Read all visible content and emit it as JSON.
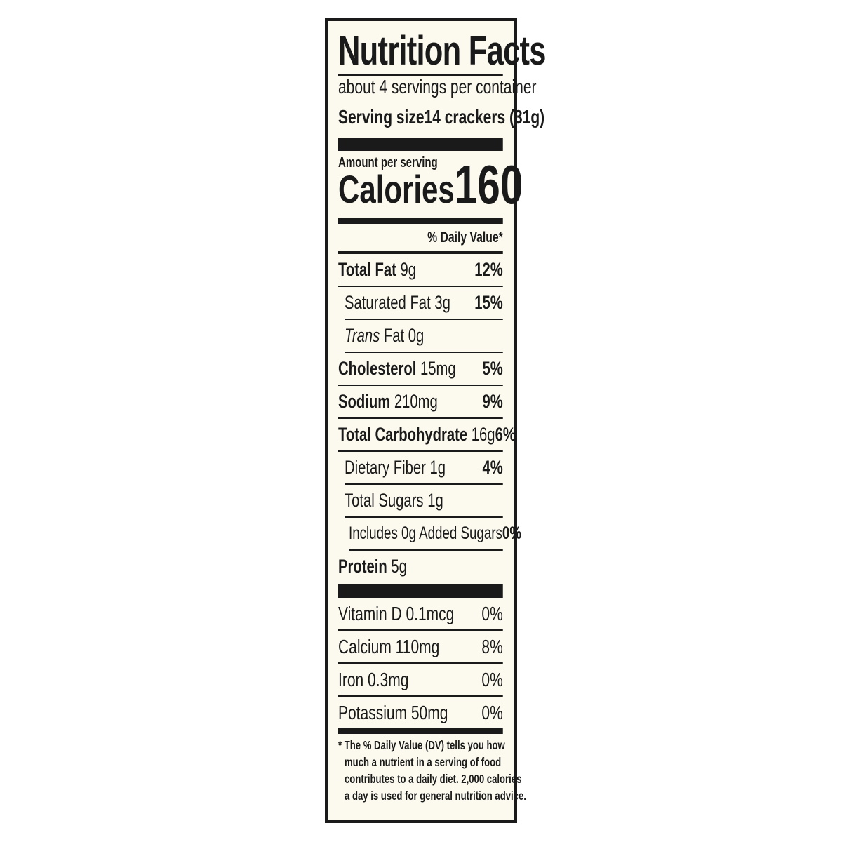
{
  "label": {
    "title": "Nutrition Facts",
    "servings_per_container": "about 4 servings per container",
    "serving_size_label": "Serving size",
    "serving_size_value": "14 crackers (31g)",
    "amount_per_serving": "Amount per serving",
    "calories_label": "Calories",
    "calories_value": "160",
    "daily_value_header": "% Daily Value*",
    "nutrients": [
      {
        "name": "Total Fat",
        "amount": "9g",
        "dv": "12%"
      },
      {
        "name": "Saturated Fat",
        "amount": "3g",
        "dv": "15%"
      },
      {
        "name": "Trans",
        "name_suffix": "Fat",
        "amount": "0g",
        "dv": ""
      },
      {
        "name": "Cholesterol",
        "amount": "15mg",
        "dv": "5%"
      },
      {
        "name": "Sodium",
        "amount": "210mg",
        "dv": "9%"
      },
      {
        "name": "Total Carbohydrate",
        "amount": "16g",
        "dv": "6%"
      },
      {
        "name": "Dietary Fiber",
        "amount": "1g",
        "dv": "4%"
      },
      {
        "name": "Total Sugars",
        "amount": "1g",
        "dv": ""
      },
      {
        "name": "Includes 0g Added Sugars",
        "amount": "",
        "dv": "0%"
      },
      {
        "name": "Protein",
        "amount": "5g",
        "dv": ""
      }
    ],
    "vitamins": [
      {
        "name": "Vitamin D 0.1mcg",
        "dv": "0%"
      },
      {
        "name": "Calcium 110mg",
        "dv": "8%"
      },
      {
        "name": "Iron 0.3mg",
        "dv": "0%"
      },
      {
        "name": "Potassium 50mg",
        "dv": "0%"
      }
    ],
    "footnote_lines": [
      "* The % Daily Value (DV) tells you how",
      "much a nutrient in a serving of food",
      "contributes to a daily diet. 2,000 calories",
      "a day is used for general nutrition advice."
    ]
  },
  "colors": {
    "background": "#fcfaee",
    "ink": "#1a1a1a"
  }
}
